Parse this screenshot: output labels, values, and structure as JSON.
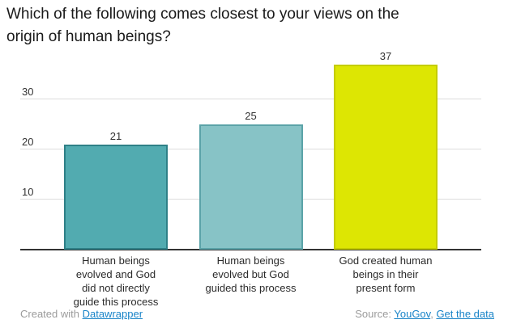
{
  "title_lines": [
    "Which of the following comes closest to your views on the",
    "origin of human beings?"
  ],
  "chart_data": {
    "type": "bar",
    "title": "Which of the following comes closest to your views on the origin of human beings?",
    "categories": [
      "Human beings evolved and God did not directly guide this process",
      "Human beings evolved but God guided this process",
      "God created human beings in their present form"
    ],
    "category_lines": [
      [
        "Human beings",
        "evolved and God",
        "did not directly",
        "guide this process"
      ],
      [
        "Human beings",
        "evolved but God",
        "guided this process"
      ],
      [
        "God created human",
        "beings in their",
        "present form"
      ]
    ],
    "values": [
      21,
      25,
      37
    ],
    "yticks": [
      10,
      20,
      30
    ],
    "ylim": [
      0,
      40
    ],
    "grid": "horizontal-only",
    "legend": "none",
    "xlabel": "",
    "ylabel": "",
    "bar_colors": [
      {
        "fill": "#52abb0",
        "border": "#2e8087"
      },
      {
        "fill": "#87c3c6",
        "border": "#5ba3a8"
      },
      {
        "fill": "#dde603",
        "border": "#c4cc00"
      }
    ],
    "gridline_color": "#dddddd",
    "baseline_color": "#333333"
  },
  "footer": {
    "created_prefix": "Created with ",
    "created_link": "Datawrapper",
    "source_prefix": "Source: ",
    "source_link1": "YouGov",
    "separator": ", ",
    "source_link2": "Get the data",
    "link_color": "#1984c8"
  }
}
